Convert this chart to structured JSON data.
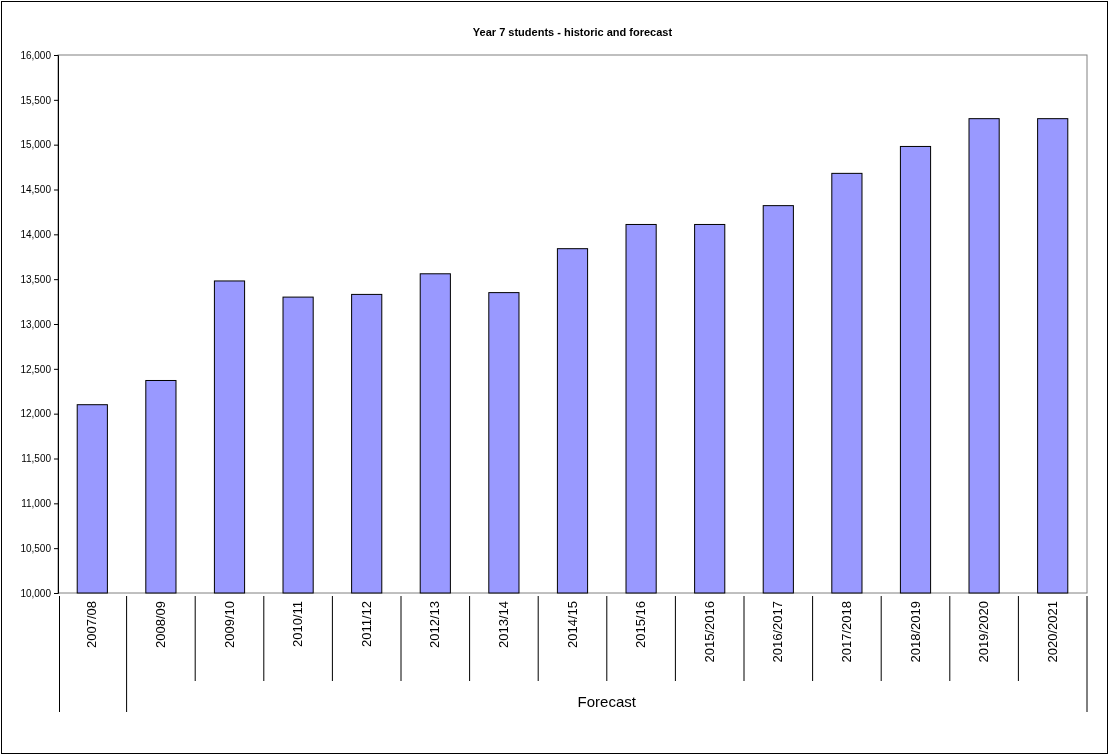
{
  "chart_data": {
    "type": "bar",
    "title": "Year 7 students - historic and forecast",
    "categories": [
      "2007/08",
      "2008/09",
      "2009/10",
      "2010/11",
      "2011/12",
      "2012/13",
      "2013/14",
      "2014/15",
      "2015/16",
      "2015/2016",
      "2016/2017",
      "2017/2018",
      "2018/2019",
      "2019/2020",
      "2020/2021"
    ],
    "values": [
      12100,
      12370,
      13480,
      13300,
      13330,
      13560,
      13350,
      13840,
      14110,
      14110,
      14320,
      14680,
      14980,
      15290,
      15290
    ],
    "color": "#9999ff",
    "ylim": [
      10000,
      16000
    ],
    "yticks": [
      {
        "value": 10000,
        "label": "10,000"
      },
      {
        "value": 10500,
        "label": "10,500"
      },
      {
        "value": 11000,
        "label": "11,000"
      },
      {
        "value": 11500,
        "label": "11,500"
      },
      {
        "value": 12000,
        "label": "12,000"
      },
      {
        "value": 12500,
        "label": "12,500"
      },
      {
        "value": 13000,
        "label": "13,000"
      },
      {
        "value": 13500,
        "label": "13,500"
      },
      {
        "value": 14000,
        "label": "14,000"
      },
      {
        "value": 14500,
        "label": "14,500"
      },
      {
        "value": 15000,
        "label": "15,000"
      },
      {
        "value": 15500,
        "label": "15,500"
      },
      {
        "value": 16000,
        "label": "16,000"
      }
    ],
    "grid": false,
    "annotations": [
      "Forecast"
    ]
  }
}
